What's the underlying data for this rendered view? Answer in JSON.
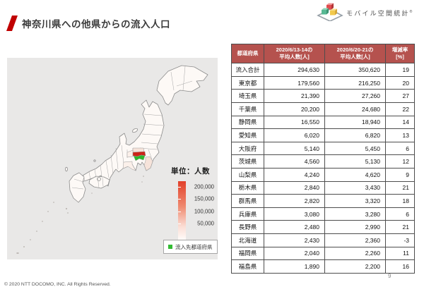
{
  "header": {
    "title": "神奈川県への他県からの流入人口",
    "brand": "モバイル空間統計",
    "brand_mark": "®"
  },
  "map": {
    "unit_label": "単位：人数",
    "scale_labels": [
      "200,000",
      "150,000",
      "100,000",
      "50,000"
    ],
    "destination_label": "流入先都道府県",
    "colors": {
      "tokyo": "#cc2418",
      "kanagawa": "#2db82d",
      "neighbor_light": "#f6e3da",
      "neighbor_faint": "#fbf0ea",
      "land": "#fdf9f6",
      "panel_bg": "#e9e8e7",
      "scale_max": "#e2402a",
      "legend_green": "#33bb33",
      "header_red": "#b5524e",
      "accent_red": "#c00000"
    }
  },
  "table": {
    "columns": [
      {
        "line1": "都道府県",
        "line2": ""
      },
      {
        "line1": "2020/6/13-14の",
        "line2": "平均人数[人]"
      },
      {
        "line1": "2020/6/20-21の",
        "line2": "平均人数[人]"
      },
      {
        "line1": "増減率",
        "line2": "[%]"
      }
    ],
    "rows": [
      [
        "流入合計",
        "294,630",
        "350,620",
        "19"
      ],
      [
        "東京都",
        "179,560",
        "216,250",
        "20"
      ],
      [
        "埼玉県",
        "21,390",
        "27,260",
        "27"
      ],
      [
        "千葉県",
        "20,200",
        "24,680",
        "22"
      ],
      [
        "静岡県",
        "16,550",
        "18,940",
        "14"
      ],
      [
        "愛知県",
        "6,020",
        "6,820",
        "13"
      ],
      [
        "大阪府",
        "5,140",
        "5,450",
        "6"
      ],
      [
        "茨城県",
        "4,560",
        "5,130",
        "12"
      ],
      [
        "山梨県",
        "4,240",
        "4,620",
        "9"
      ],
      [
        "栃木県",
        "2,840",
        "3,430",
        "21"
      ],
      [
        "群馬県",
        "2,820",
        "3,320",
        "18"
      ],
      [
        "兵庫県",
        "3,080",
        "3,280",
        "6"
      ],
      [
        "長野県",
        "2,480",
        "2,990",
        "21"
      ],
      [
        "北海道",
        "2,430",
        "2,360",
        "-3"
      ],
      [
        "福岡県",
        "2,040",
        "2,260",
        "11"
      ],
      [
        "福島県",
        "1,890",
        "2,200",
        "16"
      ]
    ]
  },
  "chart_data": {
    "type": "table",
    "title": "神奈川県への他県からの流入人口",
    "columns": [
      "都道府県",
      "2020/6/13-14の平均人数[人]",
      "2020/6/20-21の平均人数[人]",
      "増減率[%]"
    ],
    "rows": [
      [
        "流入合計",
        294630,
        350620,
        19
      ],
      [
        "東京都",
        179560,
        216250,
        20
      ],
      [
        "埼玉県",
        21390,
        27260,
        27
      ],
      [
        "千葉県",
        20200,
        24680,
        22
      ],
      [
        "静岡県",
        16550,
        18940,
        14
      ],
      [
        "愛知県",
        6020,
        6820,
        13
      ],
      [
        "大阪府",
        5140,
        5450,
        6
      ],
      [
        "茨城県",
        4560,
        5130,
        12
      ],
      [
        "山梨県",
        4240,
        4620,
        9
      ],
      [
        "栃木県",
        2840,
        3430,
        21
      ],
      [
        "群馬県",
        2820,
        3320,
        18
      ],
      [
        "兵庫県",
        3080,
        3280,
        6
      ],
      [
        "長野県",
        2480,
        2990,
        21
      ],
      [
        "北海道",
        2430,
        2360,
        -3
      ],
      [
        "福岡県",
        2040,
        2260,
        11
      ],
      [
        "福島県",
        1890,
        2200,
        16
      ]
    ],
    "map": {
      "type": "choropleth",
      "region": "Japan",
      "unit": "人数",
      "scale_ticks": [
        50000,
        100000,
        150000,
        200000
      ],
      "destination_prefecture": "神奈川県",
      "highest_inflow_prefecture": "東京都"
    }
  },
  "footer": {
    "copyright": "© 2020 NTT DOCOMO, INC. All Rights Reserved.",
    "page_number": "9"
  }
}
